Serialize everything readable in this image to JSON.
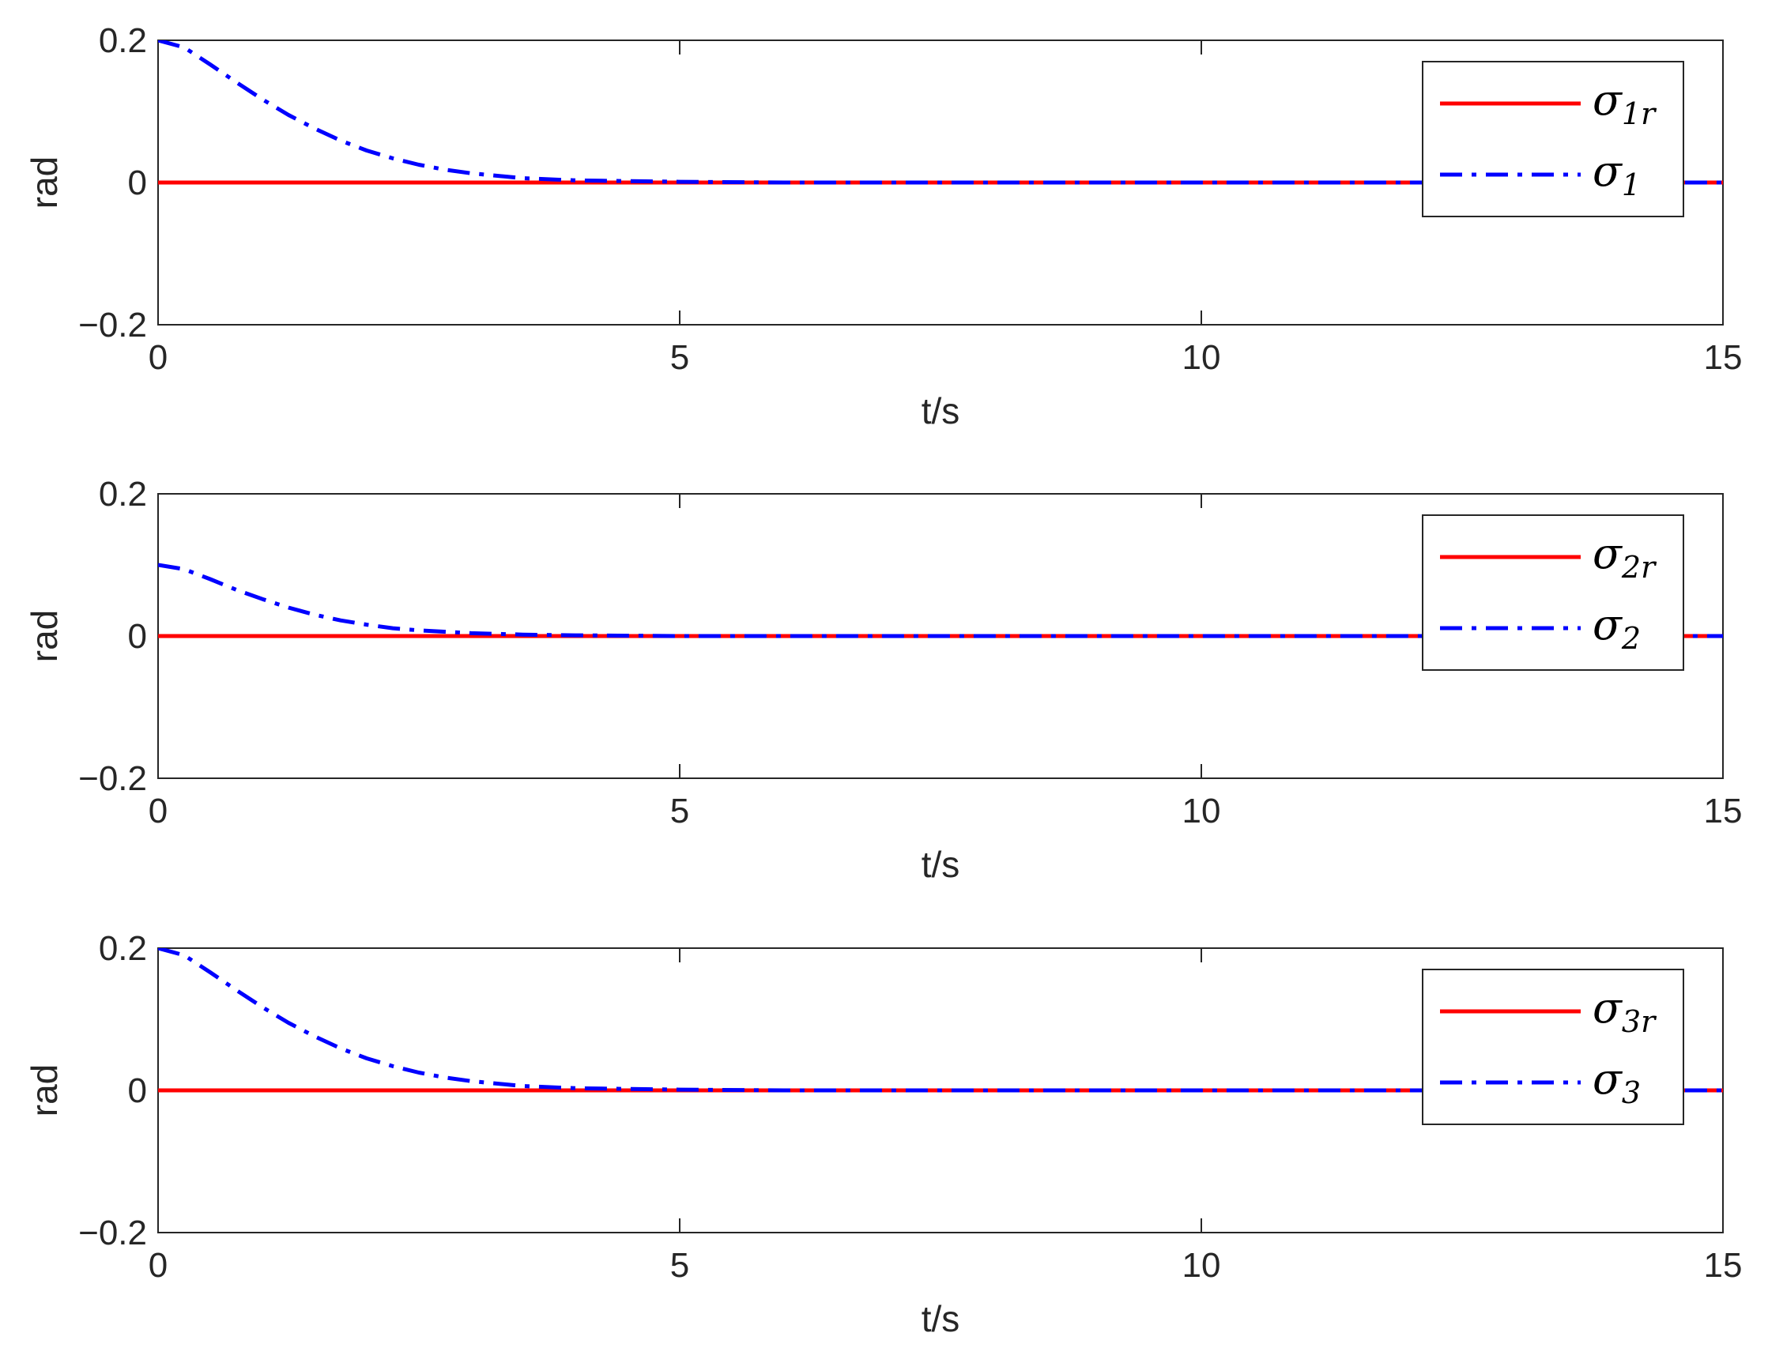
{
  "chart_data": [
    {
      "type": "line",
      "xlabel": "t/s",
      "ylabel": "rad",
      "xlim": [
        0,
        15
      ],
      "ylim": [
        -0.2,
        0.2
      ],
      "xticks": [
        0,
        5,
        10,
        15
      ],
      "yticks": [
        0.2,
        0,
        -0.2
      ],
      "xtick_labels": [
        "0",
        "5",
        "10",
        "15"
      ],
      "ytick_labels": [
        "0.2",
        "0",
        "−0.2"
      ],
      "grid": false,
      "legend_position": "top-right",
      "series": [
        {
          "name": "σ1r",
          "legend_symbol": "σ",
          "legend_sub": "1",
          "legend_sub_italic": "r",
          "color": "#ff0000",
          "style": "solid",
          "x": [
            0,
            15
          ],
          "y": [
            0,
            0
          ]
        },
        {
          "name": "σ1",
          "legend_symbol": "σ",
          "legend_sub": "1",
          "legend_sub_italic": "",
          "color": "#0000ff",
          "style": "dashdot",
          "x": [
            0,
            0.25,
            0.5,
            0.75,
            1,
            1.25,
            1.5,
            1.75,
            2,
            2.25,
            2.5,
            2.75,
            3,
            3.5,
            4,
            5,
            6,
            8,
            10,
            12,
            15
          ],
          "y": [
            0.2,
            0.19,
            0.166,
            0.141,
            0.117,
            0.095,
            0.076,
            0.059,
            0.045,
            0.034,
            0.025,
            0.018,
            0.013,
            0.006,
            0.003,
            0.001,
            0,
            0,
            0,
            0,
            0
          ]
        }
      ]
    },
    {
      "type": "line",
      "xlabel": "t/s",
      "ylabel": "rad",
      "xlim": [
        0,
        15
      ],
      "ylim": [
        -0.2,
        0.2
      ],
      "xticks": [
        0,
        5,
        10,
        15
      ],
      "yticks": [
        0.2,
        0,
        -0.2
      ],
      "xtick_labels": [
        "0",
        "5",
        "10",
        "15"
      ],
      "ytick_labels": [
        "0.2",
        "0",
        "−0.2"
      ],
      "grid": false,
      "legend_position": "top-right",
      "series": [
        {
          "name": "σ2r",
          "legend_symbol": "σ",
          "legend_sub": "2",
          "legend_sub_italic": "r",
          "color": "#ff0000",
          "style": "solid",
          "x": [
            0,
            15
          ],
          "y": [
            0,
            0
          ]
        },
        {
          "name": "σ2",
          "legend_symbol": "σ",
          "legend_sub": "2",
          "legend_sub_italic": "",
          "color": "#0000ff",
          "style": "dashdot",
          "x": [
            0,
            0.25,
            0.5,
            0.75,
            1,
            1.25,
            1.5,
            1.75,
            2,
            2.25,
            2.5,
            3,
            3.5,
            4,
            5,
            6,
            8,
            10,
            12,
            15
          ],
          "y": [
            0.1,
            0.094,
            0.08,
            0.065,
            0.052,
            0.04,
            0.03,
            0.022,
            0.016,
            0.011,
            0.008,
            0.004,
            0.002,
            0.001,
            0,
            0,
            0,
            0,
            0,
            0
          ]
        }
      ]
    },
    {
      "type": "line",
      "xlabel": "t/s",
      "ylabel": "rad",
      "xlim": [
        0,
        15
      ],
      "ylim": [
        -0.2,
        0.2
      ],
      "xticks": [
        0,
        5,
        10,
        15
      ],
      "yticks": [
        0.2,
        0,
        -0.2
      ],
      "xtick_labels": [
        "0",
        "5",
        "10",
        "15"
      ],
      "ytick_labels": [
        "0.2",
        "0",
        "−0.2"
      ],
      "grid": false,
      "legend_position": "top-right",
      "series": [
        {
          "name": "σ3r",
          "legend_symbol": "σ",
          "legend_sub": "3",
          "legend_sub_italic": "r",
          "color": "#ff0000",
          "style": "solid",
          "x": [
            0,
            15
          ],
          "y": [
            0,
            0
          ]
        },
        {
          "name": "σ3",
          "legend_symbol": "σ",
          "legend_sub": "3",
          "legend_sub_italic": "",
          "color": "#0000ff",
          "style": "dashdot",
          "x": [
            0,
            0.25,
            0.5,
            0.75,
            1,
            1.25,
            1.5,
            1.75,
            2,
            2.25,
            2.5,
            2.75,
            3,
            3.5,
            4,
            5,
            6,
            8,
            10,
            12,
            15
          ],
          "y": [
            0.2,
            0.19,
            0.166,
            0.141,
            0.117,
            0.095,
            0.076,
            0.059,
            0.045,
            0.034,
            0.025,
            0.018,
            0.013,
            0.006,
            0.003,
            0.001,
            0,
            0,
            0,
            0,
            0
          ]
        }
      ]
    }
  ]
}
